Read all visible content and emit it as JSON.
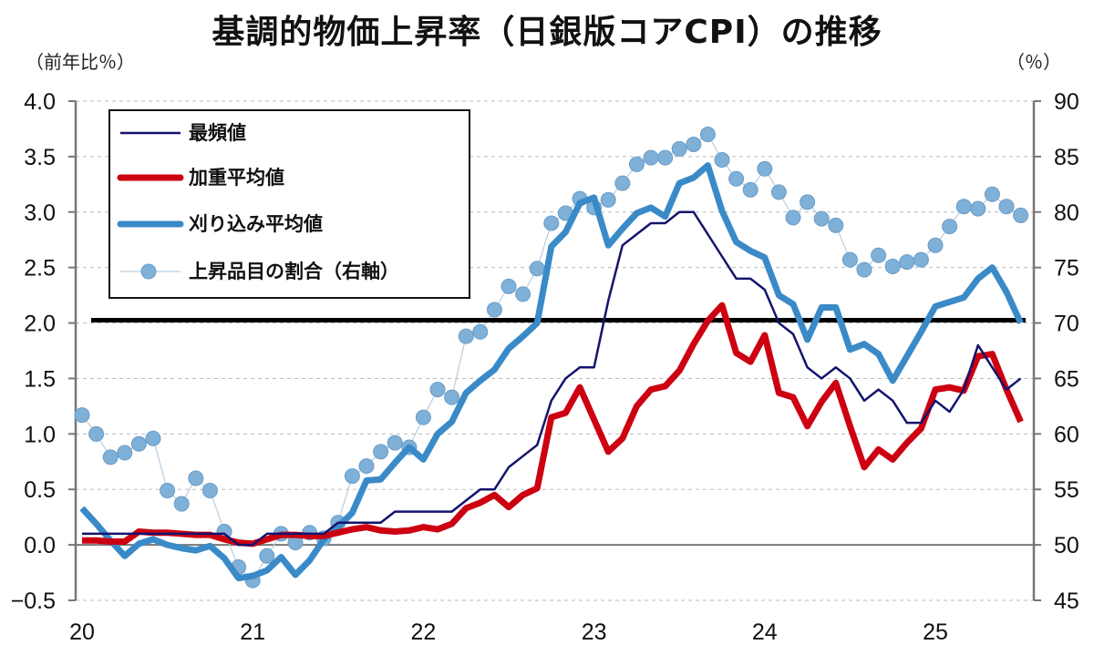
{
  "title": "基調的物価上昇率（日銀版コアCPI）の推移",
  "left_unit": "（前年比％）",
  "right_unit": "（％）",
  "chart_data": {
    "type": "line",
    "title": "基調的物価上昇率（日銀版コアCPI）の推移",
    "ylabel": "（前年比％）",
    "y2label": "（％）",
    "ylim": [
      -0.5,
      4.0
    ],
    "y2lim": [
      45,
      90
    ],
    "yticks": [
      "4.0",
      "3.5",
      "3.0",
      "2.5",
      "2.0",
      "1.5",
      "1.0",
      "0.5",
      "0.0",
      "-0.5"
    ],
    "y2ticks": [
      "90",
      "85",
      "80",
      "75",
      "70",
      "65",
      "60",
      "55",
      "50",
      "45"
    ],
    "xticks": [
      "20",
      "21",
      "22",
      "23",
      "24",
      "25"
    ],
    "x_start": "2020-01",
    "x_frequency": "monthly",
    "grid": true,
    "legend_position": "top-left",
    "reference_line": {
      "value": 2.0,
      "axis": "left",
      "color": "#000000"
    },
    "colors": {
      "mode": "#14146e",
      "weighted": "#cc0010",
      "trimmed": "#3a8ac8",
      "share": "#7fb0d8",
      "negative_tick": "#e00000"
    },
    "series": [
      {
        "name": "最頻値",
        "axis": "left",
        "style": "thin-line",
        "values": [
          0.1,
          0.1,
          0.1,
          0.1,
          0.1,
          0.1,
          0.1,
          0.1,
          0.1,
          0.1,
          0.1,
          0.0,
          0.0,
          0.1,
          0.1,
          0.1,
          0.1,
          0.1,
          0.2,
          0.2,
          0.2,
          0.2,
          0.3,
          0.3,
          0.3,
          0.3,
          0.3,
          0.4,
          0.5,
          0.5,
          0.7,
          0.8,
          0.9,
          1.3,
          1.5,
          1.6,
          1.6,
          2.2,
          2.7,
          2.8,
          2.9,
          2.9,
          3.0,
          3.0,
          2.8,
          2.6,
          2.4,
          2.4,
          2.3,
          2.0,
          1.9,
          1.6,
          1.5,
          1.6,
          1.5,
          1.3,
          1.4,
          1.3,
          1.1,
          1.1,
          1.3,
          1.2,
          1.4,
          1.8,
          1.6,
          1.4,
          1.5
        ]
      },
      {
        "name": "加重平均値",
        "axis": "left",
        "style": "thick-line",
        "values": [
          0.04,
          0.04,
          0.03,
          0.03,
          0.12,
          0.11,
          0.11,
          0.1,
          0.09,
          0.09,
          0.05,
          0.02,
          0.01,
          0.05,
          0.09,
          0.09,
          0.08,
          0.08,
          0.11,
          0.14,
          0.16,
          0.13,
          0.12,
          0.13,
          0.16,
          0.14,
          0.19,
          0.33,
          0.38,
          0.45,
          0.34,
          0.45,
          0.51,
          1.15,
          1.19,
          1.42,
          1.13,
          0.84,
          0.96,
          1.25,
          1.4,
          1.43,
          1.57,
          1.81,
          2.02,
          2.16,
          1.73,
          1.65,
          1.89,
          1.37,
          1.33,
          1.07,
          1.29,
          1.46,
          1.07,
          0.7,
          0.86,
          0.77,
          0.92,
          1.05,
          1.4,
          1.42,
          1.39,
          1.7,
          1.72,
          1.4,
          1.11
        ]
      },
      {
        "name": "刈り込み平均値",
        "axis": "left",
        "style": "thick-line",
        "values": [
          0.33,
          0.19,
          0.04,
          -0.1,
          0.01,
          0.05,
          0.0,
          -0.03,
          -0.05,
          -0.01,
          -0.12,
          -0.3,
          -0.28,
          -0.23,
          -0.11,
          -0.27,
          -0.14,
          0.05,
          0.16,
          0.29,
          0.58,
          0.59,
          0.74,
          0.88,
          0.77,
          1.0,
          1.11,
          1.37,
          1.48,
          1.58,
          1.77,
          1.88,
          2.0,
          2.69,
          2.82,
          3.08,
          3.13,
          2.7,
          2.85,
          2.99,
          3.04,
          2.96,
          3.26,
          3.31,
          3.42,
          3.01,
          2.73,
          2.65,
          2.59,
          2.25,
          2.17,
          1.85,
          2.14,
          2.14,
          1.76,
          1.81,
          1.72,
          1.48,
          1.7,
          1.92,
          2.15,
          2.19,
          2.23,
          2.4,
          2.5,
          2.28,
          2.0
        ]
      },
      {
        "name": "上昇品目の割合（右軸）",
        "axis": "right",
        "style": "markers",
        "values": [
          61.7,
          60.0,
          57.9,
          58.3,
          59.1,
          59.6,
          54.9,
          53.7,
          56.0,
          54.9,
          51.2,
          48.0,
          46.8,
          49.0,
          51.0,
          50.2,
          51.1,
          50.6,
          52.0,
          56.2,
          57.1,
          58.4,
          59.2,
          58.8,
          61.5,
          64.0,
          63.3,
          68.8,
          69.2,
          71.2,
          73.3,
          72.6,
          74.9,
          79.0,
          79.9,
          81.2,
          80.4,
          81.1,
          82.6,
          84.3,
          84.9,
          84.9,
          85.7,
          86.1,
          87.0,
          84.7,
          83.0,
          82.0,
          83.9,
          81.8,
          79.5,
          80.9,
          79.4,
          78.8,
          75.7,
          74.8,
          76.1,
          75.1,
          75.5,
          75.7,
          77.0,
          78.7,
          80.5,
          80.3,
          81.6,
          80.5,
          79.7
        ]
      }
    ]
  }
}
